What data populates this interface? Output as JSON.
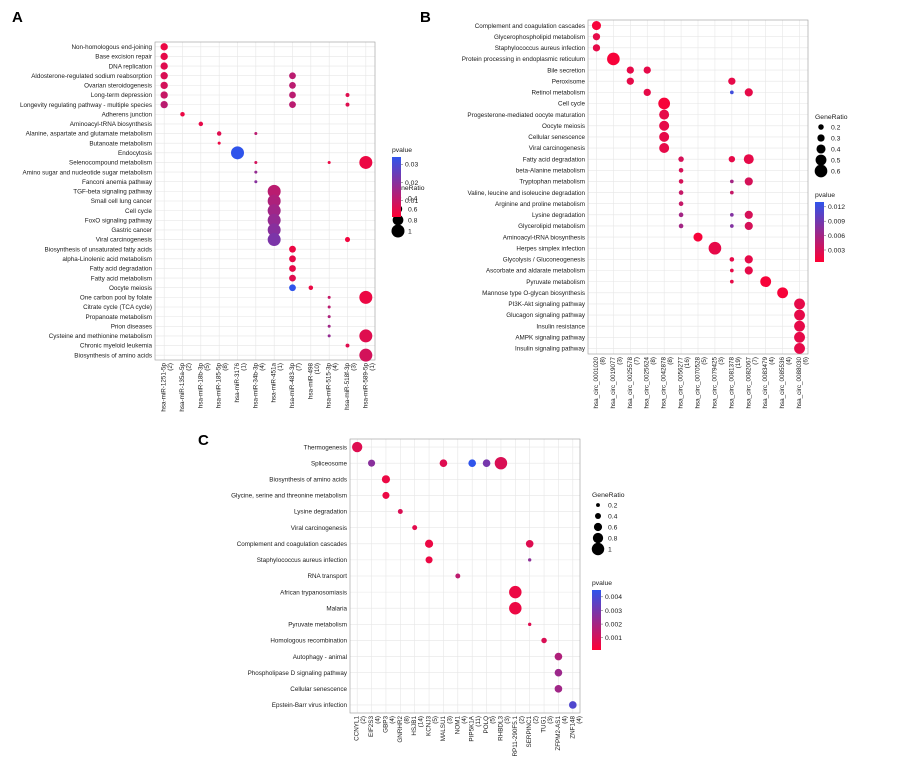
{
  "colors": {
    "low_p": "#ff0033",
    "high_p": "#2f54eb",
    "grid": "#e6e6e6",
    "panel_bg": "#ffffff"
  },
  "chart_data": [
    {
      "panel": "A",
      "type": "scatter",
      "y_categories": [
        "Non-homologous end-joining",
        "Base excision repair",
        "DNA replication",
        "Aldosterone-regulated sodium reabsorption",
        "Ovarian steroidogenesis",
        "Long-term depression",
        "Longevity regulating pathway - multiple species",
        "Adherens junction",
        "Aminoacyl-tRNA biosynthesis",
        "Alanine, aspartate and glutamate metabolism",
        "Butanoate metabolism",
        "Endocytosis",
        "Selenocompound metabolism",
        "Amino sugar and nucleotide sugar metabolism",
        "Fanconi anemia pathway",
        "TGF-beta signaling pathway",
        "Small cell lung cancer",
        "Cell cycle",
        "FoxO signaling pathway",
        "Gastric cancer",
        "Viral carcinogenesis",
        "Biosynthesis of unsaturated fatty acids",
        "alpha-Linolenic acid metabolism",
        "Fatty acid degradation",
        "Fatty acid metabolism",
        "Oocyte meiosis",
        "One carbon pool by folate",
        "Citrate cycle (TCA cycle)",
        "Propanoate metabolism",
        "Prion diseases",
        "Cysteine and methionine metabolism",
        "Chronic myeloid leukemia",
        "Biosynthesis of amino acids"
      ],
      "x_categories": [
        "hsa-miR-1251-5p\n(2)",
        "hsa-miR-135a-5p\n(2)",
        "hsa-miR-18b-3p\n(5)",
        "hsa-miR-185-5p\n(8)",
        "hsa-miR-3176\n(1)",
        "hsa-miR-34b-3p\n(4)",
        "hsa-miR-451a\n(1)",
        "hsa-miR-483-3p\n(7)",
        "hsa-miR-498\n(10)",
        "hsa-miR-515-3p\n(4)",
        "hsa-miR-518f-3p\n(3)",
        "hsa-miR-589-5p\n(1)"
      ],
      "size_legend_title": "GeneRatio",
      "size_legend": [
        0.4,
        0.6,
        0.8,
        1.0
      ],
      "color_legend_title": "pvalue",
      "color_ticks": [
        0.03,
        0.02,
        0.01
      ],
      "color_range": [
        0.001,
        0.034
      ],
      "size_range": [
        0.1,
        1.0
      ],
      "points": [
        {
          "x": 0,
          "y": 0,
          "ratio": 0.5,
          "p": 0.004
        },
        {
          "x": 0,
          "y": 1,
          "ratio": 0.5,
          "p": 0.005
        },
        {
          "x": 0,
          "y": 2,
          "ratio": 0.5,
          "p": 0.006
        },
        {
          "x": 0,
          "y": 3,
          "ratio": 0.5,
          "p": 0.007
        },
        {
          "x": 0,
          "y": 4,
          "ratio": 0.5,
          "p": 0.008
        },
        {
          "x": 0,
          "y": 5,
          "ratio": 0.5,
          "p": 0.01
        },
        {
          "x": 0,
          "y": 6,
          "ratio": 0.5,
          "p": 0.012
        },
        {
          "x": 1,
          "y": 7,
          "ratio": 0.25,
          "p": 0.004
        },
        {
          "x": 2,
          "y": 8,
          "ratio": 0.25,
          "p": 0.005
        },
        {
          "x": 3,
          "y": 9,
          "ratio": 0.25,
          "p": 0.006
        },
        {
          "x": 3,
          "y": 10,
          "ratio": 0.12,
          "p": 0.004
        },
        {
          "x": 4,
          "y": 11,
          "ratio": 1.0,
          "p": 0.034
        },
        {
          "x": 5,
          "y": 9,
          "ratio": 0.12,
          "p": 0.012
        },
        {
          "x": 5,
          "y": 12,
          "ratio": 0.12,
          "p": 0.008
        },
        {
          "x": 5,
          "y": 13,
          "ratio": 0.12,
          "p": 0.018
        },
        {
          "x": 5,
          "y": 14,
          "ratio": 0.12,
          "p": 0.02
        },
        {
          "x": 6,
          "y": 15,
          "ratio": 1.0,
          "p": 0.012
        },
        {
          "x": 6,
          "y": 16,
          "ratio": 1.0,
          "p": 0.014
        },
        {
          "x": 6,
          "y": 17,
          "ratio": 1.0,
          "p": 0.016
        },
        {
          "x": 6,
          "y": 18,
          "ratio": 1.0,
          "p": 0.018
        },
        {
          "x": 6,
          "y": 19,
          "ratio": 1.0,
          "p": 0.02
        },
        {
          "x": 6,
          "y": 20,
          "ratio": 1.0,
          "p": 0.022
        },
        {
          "x": 7,
          "y": 3,
          "ratio": 0.45,
          "p": 0.012
        },
        {
          "x": 7,
          "y": 4,
          "ratio": 0.45,
          "p": 0.012
        },
        {
          "x": 7,
          "y": 5,
          "ratio": 0.45,
          "p": 0.012
        },
        {
          "x": 7,
          "y": 6,
          "ratio": 0.45,
          "p": 0.012
        },
        {
          "x": 7,
          "y": 21,
          "ratio": 0.45,
          "p": 0.004
        },
        {
          "x": 7,
          "y": 22,
          "ratio": 0.45,
          "p": 0.005
        },
        {
          "x": 7,
          "y": 23,
          "ratio": 0.45,
          "p": 0.005
        },
        {
          "x": 7,
          "y": 24,
          "ratio": 0.45,
          "p": 0.006
        },
        {
          "x": 7,
          "y": 25,
          "ratio": 0.45,
          "p": 0.034
        },
        {
          "x": 8,
          "y": 25,
          "ratio": 0.25,
          "p": 0.004
        },
        {
          "x": 9,
          "y": 12,
          "ratio": 0.12,
          "p": 0.004
        },
        {
          "x": 9,
          "y": 26,
          "ratio": 0.12,
          "p": 0.01
        },
        {
          "x": 9,
          "y": 27,
          "ratio": 0.12,
          "p": 0.012
        },
        {
          "x": 9,
          "y": 28,
          "ratio": 0.12,
          "p": 0.014
        },
        {
          "x": 9,
          "y": 29,
          "ratio": 0.12,
          "p": 0.016
        },
        {
          "x": 9,
          "y": 30,
          "ratio": 0.12,
          "p": 0.018
        },
        {
          "x": 10,
          "y": 5,
          "ratio": 0.2,
          "p": 0.006
        },
        {
          "x": 10,
          "y": 6,
          "ratio": 0.2,
          "p": 0.006
        },
        {
          "x": 10,
          "y": 20,
          "ratio": 0.3,
          "p": 0.003
        },
        {
          "x": 10,
          "y": 31,
          "ratio": 0.2,
          "p": 0.006
        },
        {
          "x": 11,
          "y": 12,
          "ratio": 1.0,
          "p": 0.004
        },
        {
          "x": 11,
          "y": 26,
          "ratio": 1.0,
          "p": 0.004
        },
        {
          "x": 11,
          "y": 30,
          "ratio": 1.0,
          "p": 0.006
        },
        {
          "x": 11,
          "y": 32,
          "ratio": 1.0,
          "p": 0.008
        }
      ]
    },
    {
      "panel": "B",
      "type": "scatter",
      "y_categories": [
        "Complement and coagulation cascades",
        "Glycerophospholipid metabolism",
        "Staphylococcus aureus infection",
        "Protein processing in endoplasmic reticulum",
        "Bile secretion",
        "Peroxisome",
        "Retinol metabolism",
        "Cell cycle",
        "Progesterone-mediated oocyte maturation",
        "Oocyte meiosis",
        "Cellular senescence",
        "Viral carcinogenesis",
        "Fatty acid degradation",
        "beta-Alanine metabolism",
        "Tryptophan metabolism",
        "Valine, leucine and isoleucine degradation",
        "Arginine and proline metabolism",
        "Lysine degradation",
        "Glycerolipid metabolism",
        "Aminoacyl-tRNA biosynthesis",
        "Herpes simplex infection",
        "Glycolysis / Gluconeogenesis",
        "Ascorbate and aldarate metabolism",
        "Pyruvate metabolism",
        "Mannose type O-glycan biosynthesis",
        "PI3K-Akt signaling pathway",
        "Glucagon signaling pathway",
        "Insulin resistance",
        "AMPK signaling pathway",
        "Insulin signaling pathway"
      ],
      "x_categories": [
        "hsa_circ_0001020\n(8)",
        "hsa_circ_0019077\n(3)",
        "hsa_circ_0025578\n(7)",
        "hsa_circ_0025624\n(8)",
        "hsa_circ_0042878\n(8)",
        "hsa_circ_0056277\n(16)",
        "hsa_circ_0070528\n(5)",
        "hsa_circ_0079425\n(3)",
        "hsa_circ_0081378\n(19)",
        "hsa_circ_0082067\n(7)",
        "hsa_circ_0083479\n(4)",
        "hsa_circ_0085536\n(4)",
        "hsa_circ_0088030\n(6)"
      ],
      "size_legend_title": "GeneRatio",
      "size_legend": [
        0.2,
        0.3,
        0.4,
        0.5,
        0.6
      ],
      "color_legend_title": "pvalue",
      "color_ticks": [
        0.012,
        0.009,
        0.006,
        0.003
      ],
      "color_range": [
        0.0005,
        0.013
      ],
      "size_range": [
        0.05,
        0.62
      ],
      "points": [
        {
          "x": 0,
          "y": 0,
          "ratio": 0.4,
          "p": 0.001
        },
        {
          "x": 0,
          "y": 1,
          "ratio": 0.3,
          "p": 0.002
        },
        {
          "x": 0,
          "y": 2,
          "ratio": 0.3,
          "p": 0.002
        },
        {
          "x": 1,
          "y": 3,
          "ratio": 0.6,
          "p": 0.001
        },
        {
          "x": 2,
          "y": 4,
          "ratio": 0.3,
          "p": 0.002
        },
        {
          "x": 2,
          "y": 5,
          "ratio": 0.3,
          "p": 0.002
        },
        {
          "x": 3,
          "y": 4,
          "ratio": 0.3,
          "p": 0.002
        },
        {
          "x": 3,
          "y": 6,
          "ratio": 0.3,
          "p": 0.002
        },
        {
          "x": 4,
          "y": 7,
          "ratio": 0.55,
          "p": 0.001
        },
        {
          "x": 4,
          "y": 8,
          "ratio": 0.45,
          "p": 0.002
        },
        {
          "x": 4,
          "y": 9,
          "ratio": 0.45,
          "p": 0.002
        },
        {
          "x": 4,
          "y": 10,
          "ratio": 0.45,
          "p": 0.002
        },
        {
          "x": 4,
          "y": 11,
          "ratio": 0.45,
          "p": 0.002
        },
        {
          "x": 5,
          "y": 12,
          "ratio": 0.2,
          "p": 0.003
        },
        {
          "x": 5,
          "y": 13,
          "ratio": 0.15,
          "p": 0.003
        },
        {
          "x": 5,
          "y": 14,
          "ratio": 0.15,
          "p": 0.003
        },
        {
          "x": 5,
          "y": 15,
          "ratio": 0.15,
          "p": 0.004
        },
        {
          "x": 5,
          "y": 16,
          "ratio": 0.15,
          "p": 0.004
        },
        {
          "x": 5,
          "y": 17,
          "ratio": 0.15,
          "p": 0.006
        },
        {
          "x": 5,
          "y": 18,
          "ratio": 0.15,
          "p": 0.006
        },
        {
          "x": 6,
          "y": 19,
          "ratio": 0.4,
          "p": 0.001
        },
        {
          "x": 7,
          "y": 20,
          "ratio": 0.6,
          "p": 0.002
        },
        {
          "x": 8,
          "y": 5,
          "ratio": 0.3,
          "p": 0.002
        },
        {
          "x": 8,
          "y": 6,
          "ratio": 0.1,
          "p": 0.012
        },
        {
          "x": 8,
          "y": 12,
          "ratio": 0.25,
          "p": 0.002
        },
        {
          "x": 8,
          "y": 14,
          "ratio": 0.1,
          "p": 0.006
        },
        {
          "x": 8,
          "y": 15,
          "ratio": 0.1,
          "p": 0.004
        },
        {
          "x": 8,
          "y": 17,
          "ratio": 0.1,
          "p": 0.008
        },
        {
          "x": 8,
          "y": 18,
          "ratio": 0.1,
          "p": 0.008
        },
        {
          "x": 8,
          "y": 21,
          "ratio": 0.15,
          "p": 0.002
        },
        {
          "x": 8,
          "y": 22,
          "ratio": 0.1,
          "p": 0.002
        },
        {
          "x": 8,
          "y": 23,
          "ratio": 0.1,
          "p": 0.002
        },
        {
          "x": 9,
          "y": 6,
          "ratio": 0.35,
          "p": 0.002
        },
        {
          "x": 9,
          "y": 12,
          "ratio": 0.45,
          "p": 0.002
        },
        {
          "x": 9,
          "y": 14,
          "ratio": 0.35,
          "p": 0.003
        },
        {
          "x": 9,
          "y": 17,
          "ratio": 0.35,
          "p": 0.003
        },
        {
          "x": 9,
          "y": 18,
          "ratio": 0.35,
          "p": 0.003
        },
        {
          "x": 9,
          "y": 21,
          "ratio": 0.35,
          "p": 0.002
        },
        {
          "x": 9,
          "y": 22,
          "ratio": 0.35,
          "p": 0.002
        },
        {
          "x": 10,
          "y": 23,
          "ratio": 0.5,
          "p": 0.001
        },
        {
          "x": 11,
          "y": 24,
          "ratio": 0.5,
          "p": 0.001
        },
        {
          "x": 12,
          "y": 25,
          "ratio": 0.5,
          "p": 0.002
        },
        {
          "x": 12,
          "y": 26,
          "ratio": 0.5,
          "p": 0.002
        },
        {
          "x": 12,
          "y": 27,
          "ratio": 0.5,
          "p": 0.002
        },
        {
          "x": 12,
          "y": 28,
          "ratio": 0.5,
          "p": 0.002
        },
        {
          "x": 12,
          "y": 29,
          "ratio": 0.5,
          "p": 0.002
        }
      ]
    },
    {
      "panel": "C",
      "type": "scatter",
      "y_categories": [
        "Thermogenesis",
        "Spliceosome",
        "Biosynthesis of amino acids",
        "Glycine, serine and threonine metabolism",
        "Lysine degradation",
        "Viral carcinogenesis",
        "Complement and coagulation cascades",
        "Staphylococcus aureus infection",
        "RNA transport",
        "African trypanosomiasis",
        "Malaria",
        "Pyruvate metabolism",
        "Homologous recombination",
        "Autophagy - animal",
        "Phospholipase D signaling pathway",
        "Cellular senescence",
        "Epstein-Barr virus infection"
      ],
      "x_categories": [
        "CCNYL1\n(2)",
        "EIF2S3\n(4)",
        "GBP3\n(4)",
        "GNRHR2\n(8)",
        "HSJB1\n(14)",
        "KCNJ3\n(5)",
        "MALSU1\n(3)",
        "NOM1\n(4)",
        "PIP5K1A\n(11)",
        "POLQ\n(5)",
        "RHBDL3\n(3)",
        "RP11-290F5.1\n(2)",
        "SERPINC1\n(2)",
        "TUG1\n(3)",
        "ZFPM2-AS1\n(4)",
        "ZNF148\n(4)"
      ],
      "size_legend_title": "GeneRatio",
      "size_legend": [
        0.2,
        0.4,
        0.6,
        0.8,
        1.0
      ],
      "color_legend_title": "pvalue",
      "color_ticks": [
        0.004,
        0.003,
        0.002,
        0.001
      ],
      "color_range": [
        0.0001,
        0.0045
      ],
      "size_range": [
        0.1,
        1.05
      ],
      "points": [
        {
          "x": 0,
          "y": 0,
          "ratio": 0.8,
          "p": 0.0008
        },
        {
          "x": 1,
          "y": 1,
          "ratio": 0.5,
          "p": 0.0026
        },
        {
          "x": 2,
          "y": 2,
          "ratio": 0.6,
          "p": 0.0005
        },
        {
          "x": 2,
          "y": 3,
          "ratio": 0.5,
          "p": 0.0005
        },
        {
          "x": 3,
          "y": 4,
          "ratio": 0.3,
          "p": 0.0009
        },
        {
          "x": 4,
          "y": 5,
          "ratio": 0.3,
          "p": 0.0007
        },
        {
          "x": 5,
          "y": 6,
          "ratio": 0.6,
          "p": 0.0005
        },
        {
          "x": 5,
          "y": 7,
          "ratio": 0.5,
          "p": 0.0005
        },
        {
          "x": 6,
          "y": 1,
          "ratio": 0.55,
          "p": 0.0008
        },
        {
          "x": 7,
          "y": 8,
          "ratio": 0.3,
          "p": 0.0015
        },
        {
          "x": 8,
          "y": 1,
          "ratio": 0.55,
          "p": 0.0045
        },
        {
          "x": 9,
          "y": 1,
          "ratio": 0.55,
          "p": 0.003
        },
        {
          "x": 10,
          "y": 1,
          "ratio": 1.0,
          "p": 0.0009
        },
        {
          "x": 11,
          "y": 9,
          "ratio": 1.0,
          "p": 0.0005
        },
        {
          "x": 11,
          "y": 10,
          "ratio": 1.0,
          "p": 0.0005
        },
        {
          "x": 12,
          "y": 6,
          "ratio": 0.55,
          "p": 0.0008
        },
        {
          "x": 12,
          "y": 7,
          "ratio": 0.15,
          "p": 0.0025
        },
        {
          "x": 12,
          "y": 11,
          "ratio": 0.15,
          "p": 0.0008
        },
        {
          "x": 13,
          "y": 12,
          "ratio": 0.35,
          "p": 0.0009
        },
        {
          "x": 14,
          "y": 13,
          "ratio": 0.55,
          "p": 0.0018
        },
        {
          "x": 14,
          "y": 14,
          "ratio": 0.55,
          "p": 0.0022
        },
        {
          "x": 14,
          "y": 15,
          "ratio": 0.55,
          "p": 0.0021
        },
        {
          "x": 15,
          "y": 16,
          "ratio": 0.55,
          "p": 0.0038
        }
      ]
    }
  ]
}
